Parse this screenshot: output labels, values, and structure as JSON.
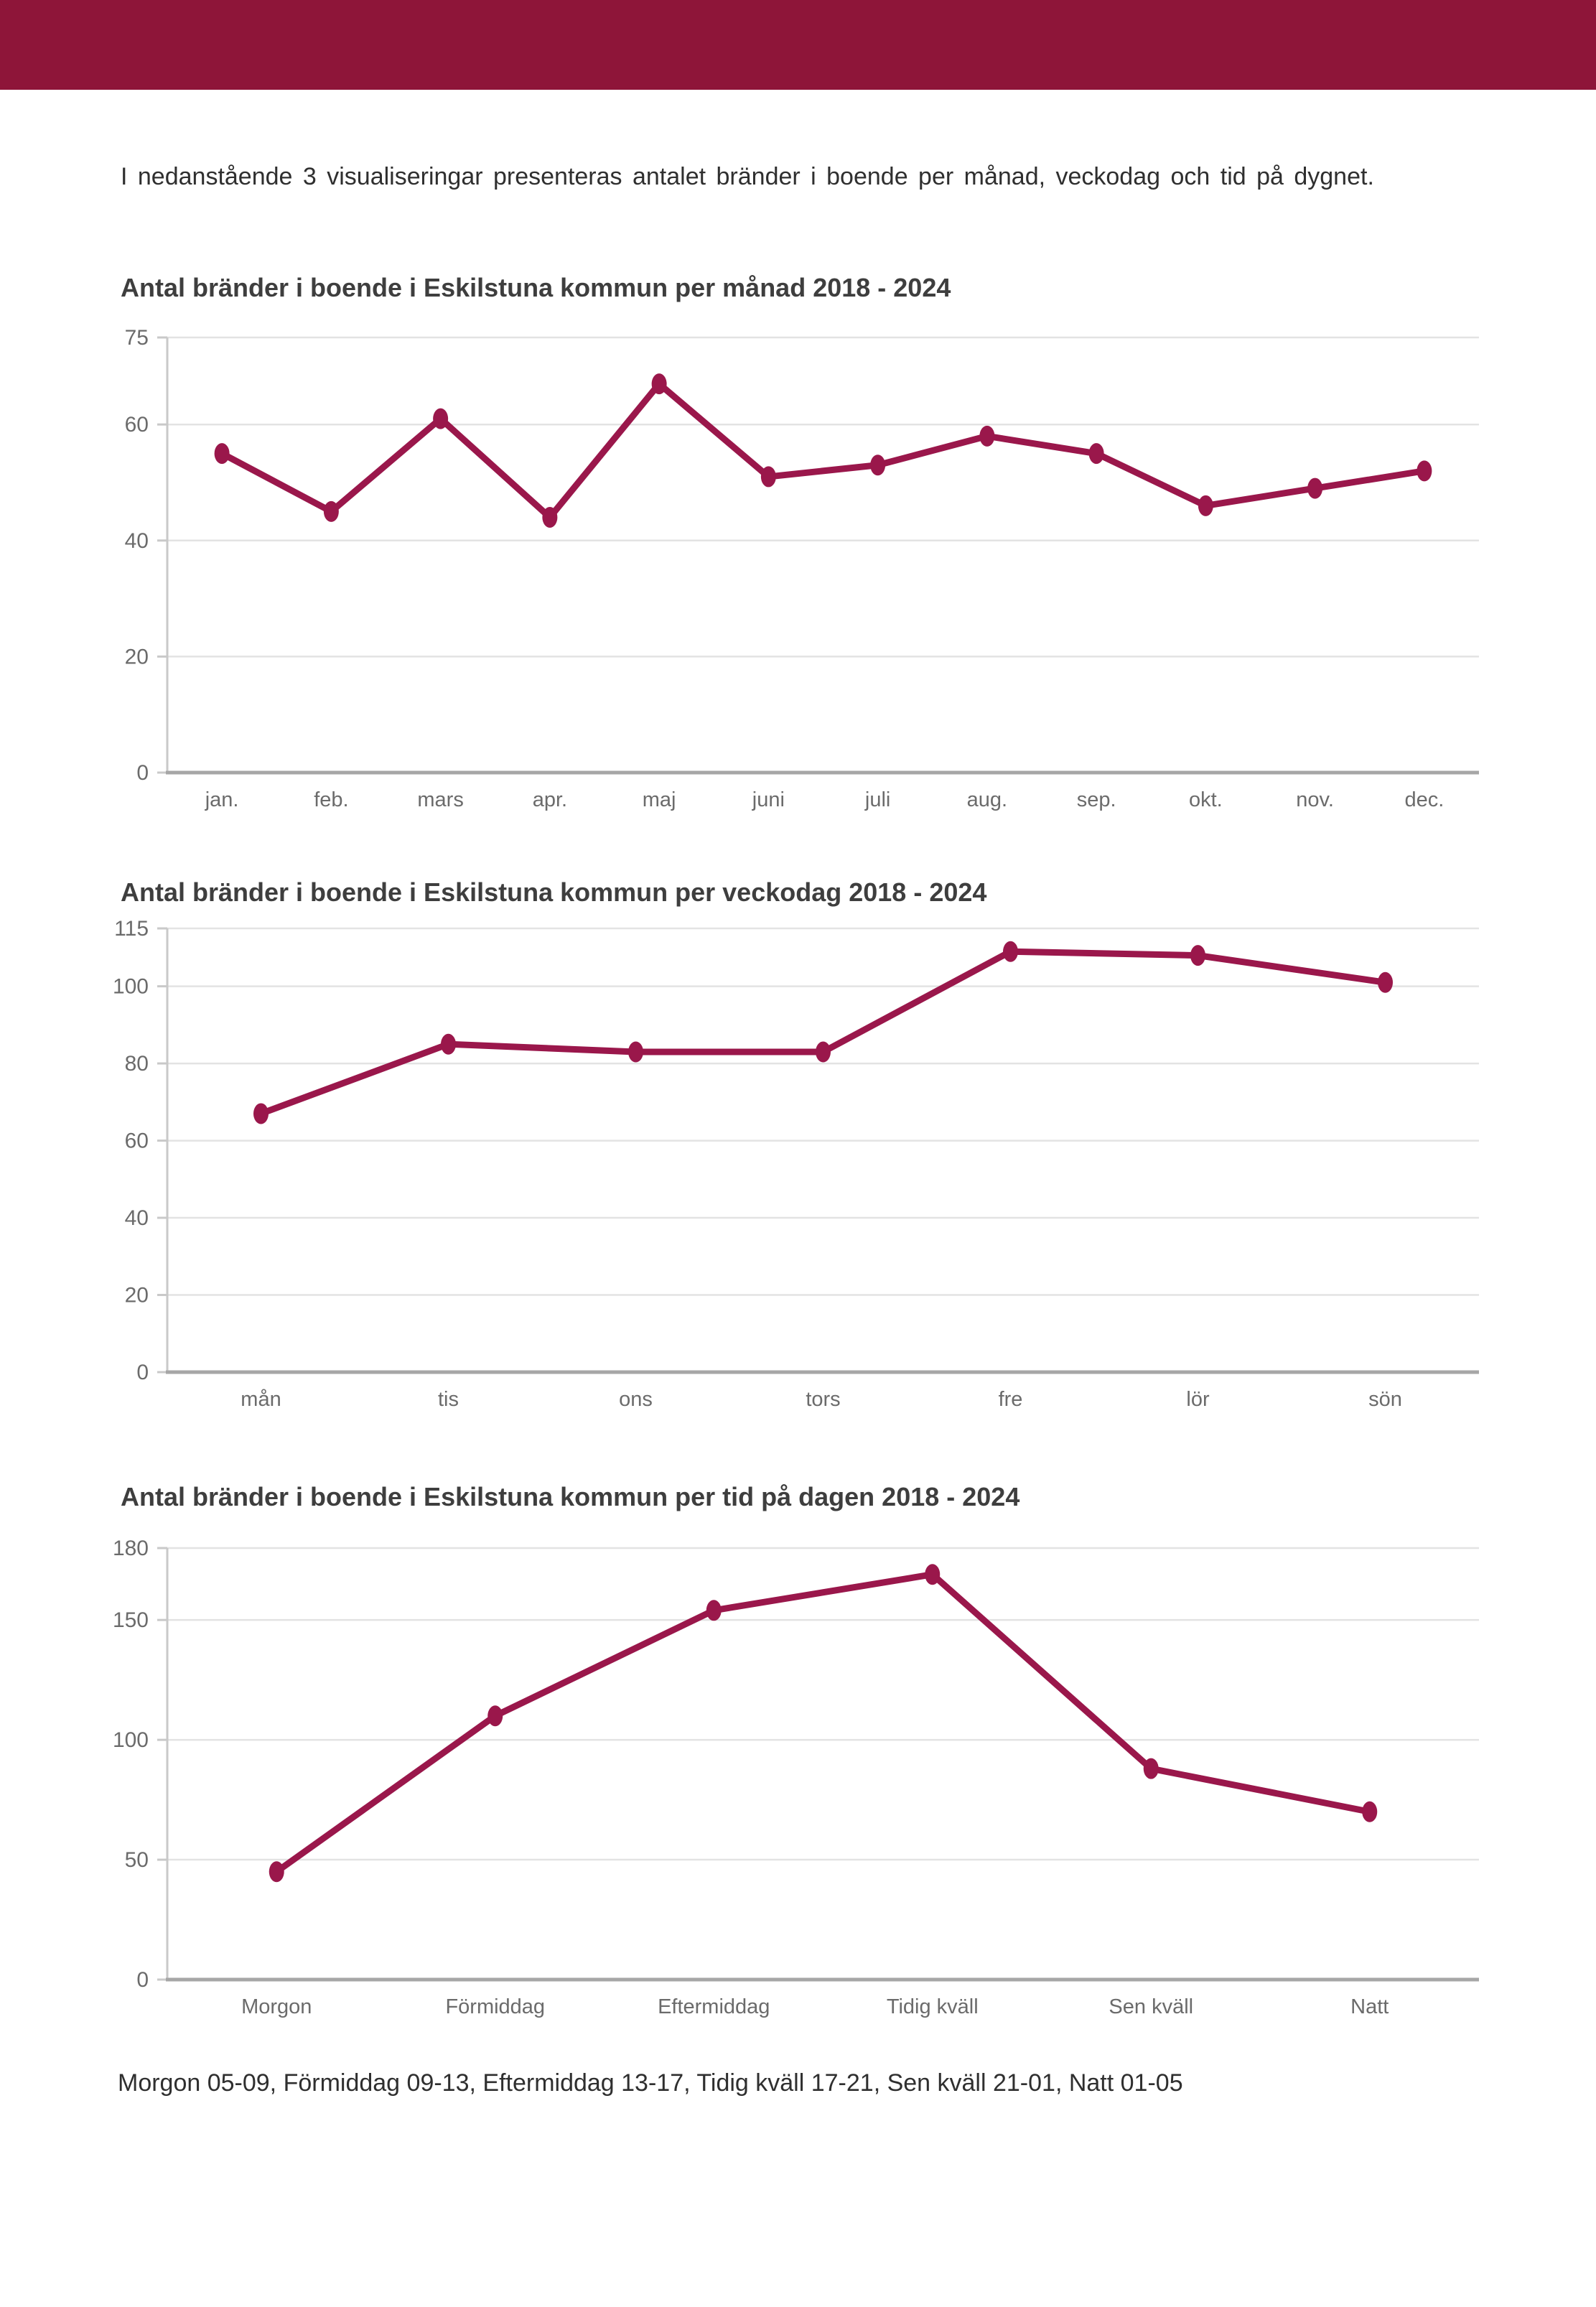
{
  "intro": "I nedanstående 3 visualiseringar presenteras antalet bränder i boende per månad, veckodag och tid på dygnet.",
  "footer_note": "Morgon 05-09, Förmiddag 09-13, Eftermiddag 13-17, Tidig kväll 17-21, Sen kväll 21-01, Natt 01-05",
  "colors": {
    "header_bar": "#8E1539",
    "line": "#9A174B",
    "grid": "#E3E3E3",
    "axis_y": "#C9C9C9",
    "axis_x": "#A6A6A6",
    "tick_label": "#6B6B6B",
    "title_text": "#3E3E3E",
    "body_text": "#2F2F2F"
  },
  "chart_data": [
    {
      "type": "line",
      "title": "Antal bränder i boende i Eskilstuna kommun per månad 2018 - 2024",
      "categories": [
        "jan.",
        "feb.",
        "mars",
        "apr.",
        "maj",
        "juni",
        "juli",
        "aug.",
        "sep.",
        "okt.",
        "nov.",
        "dec."
      ],
      "values": [
        55,
        45,
        61,
        44,
        67,
        51,
        53,
        58,
        55,
        46,
        49,
        52
      ],
      "xlabel": "",
      "ylabel": "",
      "ylim": [
        0,
        75
      ],
      "yticks": [
        0,
        20,
        40,
        60,
        75
      ],
      "grid": true,
      "legend": "none"
    },
    {
      "type": "line",
      "title": "Antal bränder i boende i Eskilstuna kommun per veckodag 2018 - 2024",
      "categories": [
        "mån",
        "tis",
        "ons",
        "tors",
        "fre",
        "lör",
        "sön"
      ],
      "values": [
        67,
        85,
        83,
        83,
        109,
        108,
        101
      ],
      "xlabel": "",
      "ylabel": "",
      "ylim": [
        0,
        115
      ],
      "yticks": [
        0,
        20,
        40,
        60,
        80,
        100,
        115
      ],
      "grid": true,
      "legend": "none"
    },
    {
      "type": "line",
      "title": "Antal bränder i boende i Eskilstuna kommun per tid på dagen 2018 - 2024",
      "categories": [
        "Morgon",
        "Förmiddag",
        "Eftermiddag",
        "Tidig kväll",
        "Sen kväll",
        "Natt"
      ],
      "values": [
        45,
        110,
        154,
        169,
        88,
        70
      ],
      "xlabel": "",
      "ylabel": "",
      "ylim": [
        0,
        180
      ],
      "yticks": [
        0,
        50,
        100,
        150,
        180
      ],
      "grid": true,
      "legend": "none"
    }
  ]
}
